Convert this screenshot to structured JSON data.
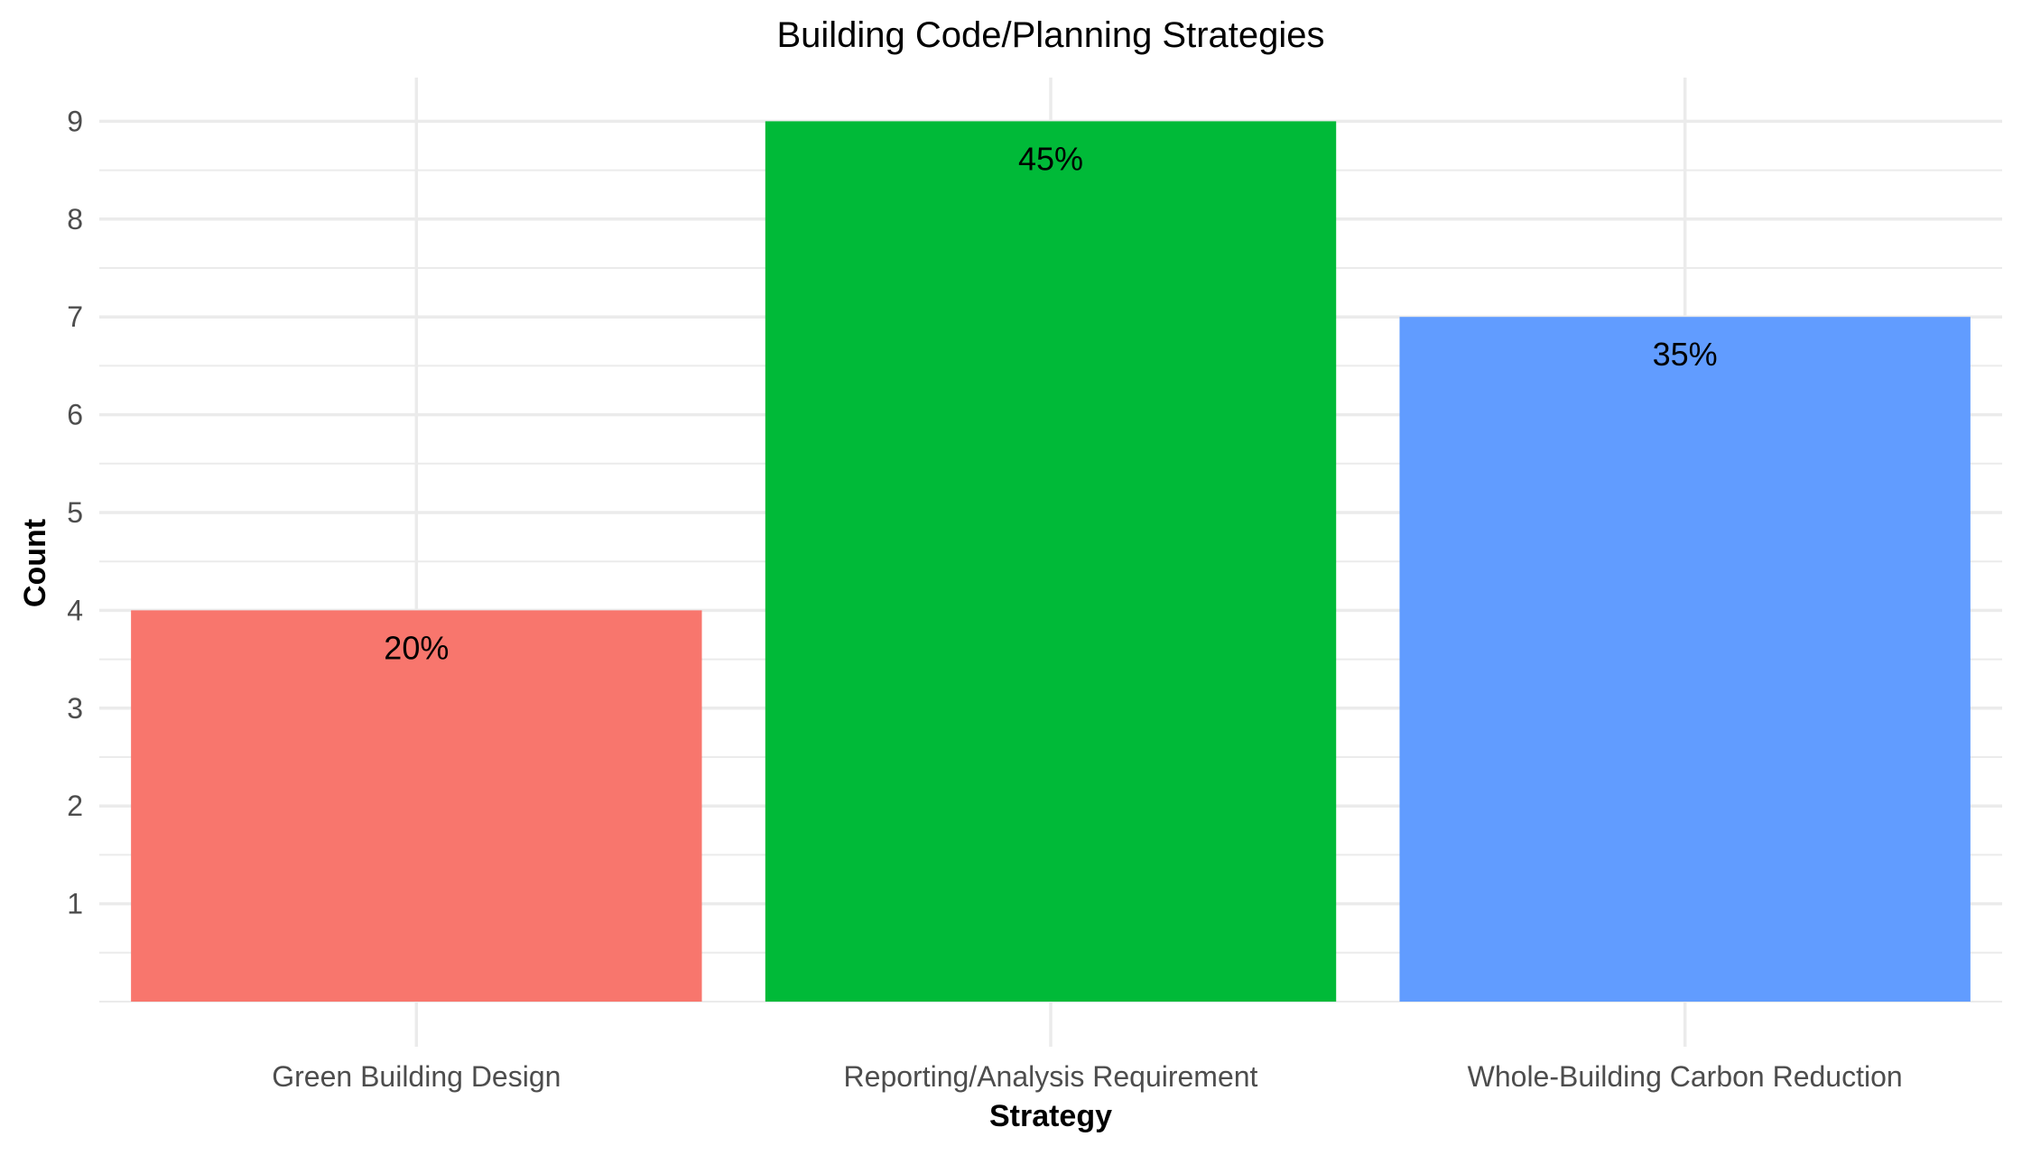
{
  "chart_data": {
    "type": "bar",
    "title": "Building Code/Planning Strategies",
    "xlabel": "Strategy",
    "ylabel": "Count",
    "categories": [
      "Green Building Design",
      "Reporting/Analysis Requirement",
      "Whole-Building Carbon Reduction"
    ],
    "values": [
      4,
      9,
      7
    ],
    "data_labels": [
      "20%",
      "45%",
      "35%"
    ],
    "colors": [
      "#F8766D",
      "#00BA38",
      "#619CFF"
    ],
    "ylim": [
      0,
      9
    ],
    "yticks": [
      "1",
      "2",
      "3",
      "4",
      "5",
      "6",
      "7",
      "8",
      "9"
    ],
    "grid": true,
    "legend": "none"
  }
}
